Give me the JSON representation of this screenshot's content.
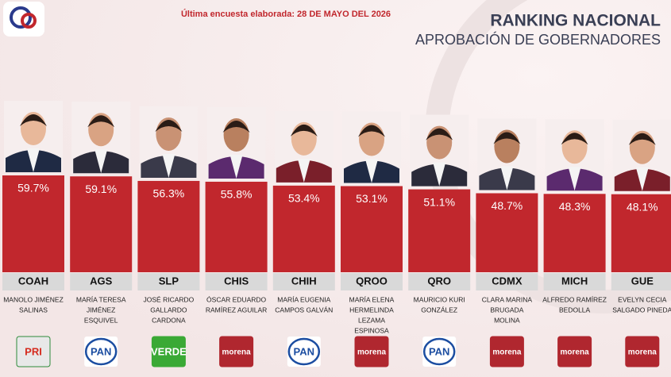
{
  "chart_data": {
    "type": "bar",
    "subtitle": "Última encuesta elaborada: 28 DE MAYO DEL 2026",
    "title": "RANKING NACIONAL",
    "title_line2": "APROBACIÓN DE GOBERNADORES",
    "categories": [
      "COAH",
      "AGS",
      "SLP",
      "CHIS",
      "CHIH",
      "QROO",
      "QRO",
      "CDMX",
      "MICH",
      "GUE"
    ],
    "values": [
      59.7,
      59.1,
      56.3,
      55.8,
      53.4,
      53.1,
      51.1,
      48.7,
      48.3,
      48.1
    ],
    "value_labels": [
      "59.7%",
      "59.1%",
      "56.3%",
      "55.8%",
      "53.4%",
      "53.1%",
      "51.1%",
      "48.7%",
      "48.3%",
      "48.1%"
    ],
    "names": [
      [
        "MANOLO JIMÉNEZ",
        "SALINAS"
      ],
      [
        "MARÍA TERESA",
        "JIMÉNEZ",
        "ESQUIVEL"
      ],
      [
        "JOSÉ RICARDO",
        "GALLARDO",
        "CARDONA"
      ],
      [
        "ÓSCAR EDUARDO",
        "RAMÍREZ AGUILAR"
      ],
      [
        "MARÍA EUGENIA",
        "CAMPOS GALVÁN"
      ],
      [
        "MARÍA ELENA",
        "HERMELINDA",
        "LEZAMA",
        "ESPINOSA"
      ],
      [
        "MAURICIO KURI",
        "GONZÁLEZ"
      ],
      [
        "CLARA MARINA",
        "BRUGADA",
        "MOLINA"
      ],
      [
        "ALFREDO RAMÍREZ",
        "BEDOLLA"
      ],
      [
        "EVELYN CECIA",
        "SALGADO PINEDA"
      ]
    ],
    "parties": [
      "PRI",
      "PAN",
      "VERDE",
      "morena",
      "PAN",
      "morena",
      "PAN",
      "morena",
      "morena",
      "morena"
    ],
    "color": "#c1272d"
  }
}
